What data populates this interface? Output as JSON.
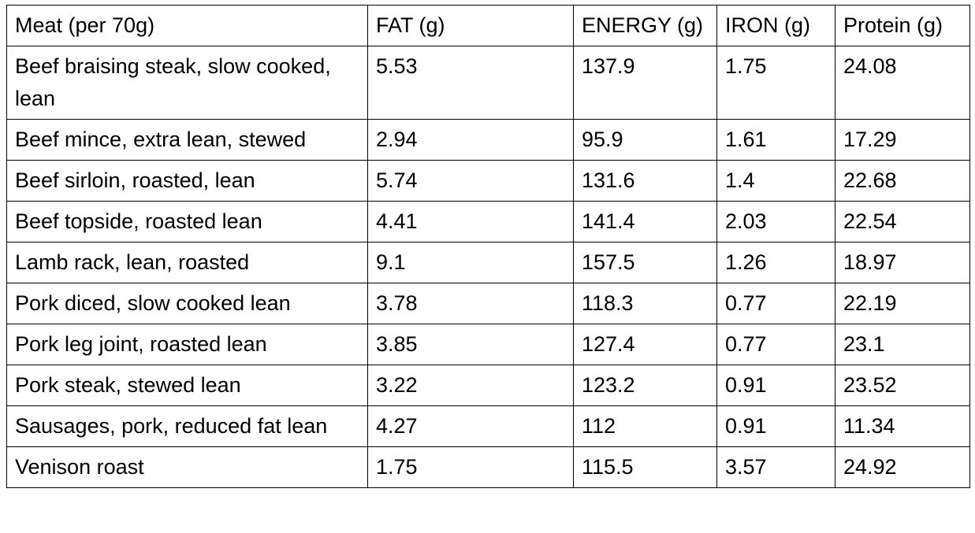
{
  "table": {
    "headers": [
      "Meat (per 70g)",
      "FAT (g)",
      "ENERGY (g)",
      "IRON (g)",
      "Protein (g)"
    ],
    "rows": [
      [
        "Beef braising steak, slow cooked, lean",
        "5.53",
        "137.9",
        "1.75",
        "24.08"
      ],
      [
        "Beef mince, extra lean, stewed",
        "2.94",
        "95.9",
        "1.61",
        "17.29"
      ],
      [
        "Beef sirloin, roasted, lean",
        "5.74",
        "131.6",
        "1.4",
        "22.68"
      ],
      [
        "Beef topside, roasted lean",
        "4.41",
        "141.4",
        "2.03",
        "22.54"
      ],
      [
        "Lamb rack, lean, roasted",
        "9.1",
        "157.5",
        "1.26",
        "18.97"
      ],
      [
        "Pork diced, slow cooked lean",
        "3.78",
        "118.3",
        "0.77",
        "22.19"
      ],
      [
        "Pork leg joint, roasted lean",
        "3.85",
        "127.4",
        "0.77",
        "23.1"
      ],
      [
        "Pork steak, stewed lean",
        "3.22",
        "123.2",
        "0.91",
        "23.52"
      ],
      [
        "Sausages, pork, reduced fat lean",
        "4.27",
        "112",
        "0.91",
        "11.34"
      ],
      [
        "Venison roast",
        "1.75",
        "115.5",
        "3.57",
        "24.92"
      ]
    ]
  }
}
